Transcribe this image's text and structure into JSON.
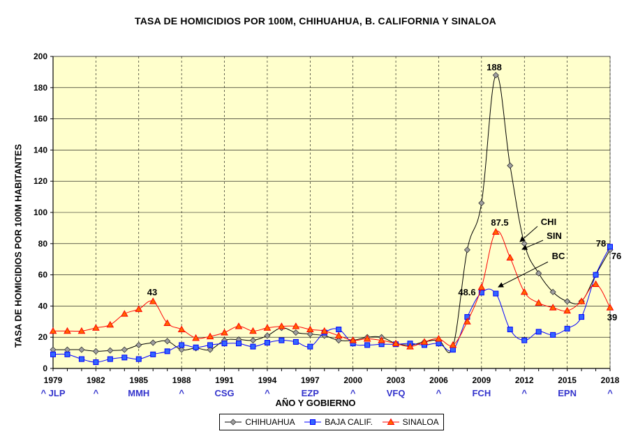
{
  "chart_data": {
    "type": "line",
    "title": "TASA DE HOMICIDIOS POR 100M, CHIHUAHUA, B. CALIFORNIA Y SINALOA",
    "ylabel": "TASA DE HOMICIDIOS POR 100M HABITANTES",
    "xlabel": "AÑO Y GOBIERNO",
    "ylim": [
      0,
      200
    ],
    "xlim": [
      1979,
      2018
    ],
    "yticks": [
      "0",
      "20",
      "40",
      "60",
      "80",
      "100",
      "120",
      "140",
      "160",
      "180",
      "200"
    ],
    "xticks": [
      "1979",
      "1982",
      "1985",
      "1988",
      "1991",
      "1994",
      "1997",
      "2000",
      "2003",
      "2006",
      "2009",
      "2012",
      "2015",
      "2018"
    ],
    "gov_labels": [
      "^ JLP",
      "^",
      "MMH",
      "^",
      "CSG",
      "^",
      "EZP",
      "^",
      "VFQ",
      "^",
      "FCH",
      "^",
      "EPN",
      "^"
    ],
    "grid": true,
    "plot_bg": "#FFFFCC",
    "x": [
      1979,
      1980,
      1981,
      1982,
      1983,
      1984,
      1985,
      1986,
      1987,
      1988,
      1989,
      1990,
      1991,
      1992,
      1993,
      1994,
      1995,
      1996,
      1997,
      1998,
      1999,
      2000,
      2001,
      2002,
      2003,
      2004,
      2005,
      2006,
      2007,
      2008,
      2009,
      2010,
      2011,
      2012,
      2013,
      2014,
      2015,
      2016,
      2017,
      2018
    ],
    "series": [
      {
        "name": "CHIHUAHUA",
        "color": "#000000",
        "marker": "diamond",
        "marker_color": "#A0A0A0",
        "values": [
          12,
          12,
          12,
          11,
          11.5,
          12,
          15,
          16.5,
          17.5,
          12,
          13,
          12,
          18,
          18.5,
          18,
          21,
          26,
          23,
          22,
          21,
          18,
          18,
          20,
          20,
          16,
          15,
          17,
          18,
          14,
          76,
          106,
          188,
          130,
          80,
          61,
          49,
          43,
          43,
          60,
          76
        ]
      },
      {
        "name": "BAJA CALIF.",
        "color": "#0000FF",
        "marker": "square",
        "marker_color": "#3366FF",
        "values": [
          9,
          9,
          6,
          4,
          6,
          7,
          6,
          9,
          11,
          15,
          13.5,
          15,
          16,
          16,
          14,
          16.5,
          18,
          17,
          14,
          23,
          25,
          16,
          15,
          15.5,
          15.5,
          16,
          15,
          16,
          12,
          33,
          48.6,
          48,
          25,
          18,
          23.5,
          21.5,
          25.5,
          33,
          60,
          78
        ]
      },
      {
        "name": "SINALOA",
        "color": "#FF0000",
        "marker": "triangle",
        "marker_color": "#FF6600",
        "values": [
          24,
          24,
          24,
          26,
          28,
          35,
          38,
          43,
          29,
          25,
          19.5,
          20.5,
          23,
          27,
          24,
          26,
          27,
          27,
          25,
          24,
          21,
          18,
          19,
          18,
          16,
          14,
          17,
          19,
          15,
          30,
          52,
          87.5,
          71,
          49,
          42,
          39,
          37,
          43,
          54,
          39
        ]
      }
    ],
    "annotations": [
      {
        "text": "188",
        "x": 2009.8,
        "y": 188
      },
      {
        "text": "87.5",
        "x": 2010,
        "y": 87.5
      },
      {
        "text": "48.6",
        "x": 2009,
        "y": 48.6
      },
      {
        "text": "43",
        "x": 1986,
        "y": 43
      },
      {
        "text": "78",
        "x": 2018,
        "y": 78
      },
      {
        "text": "76",
        "x": 2018,
        "y": 76
      },
      {
        "text": "39",
        "x": 2018,
        "y": 39
      },
      {
        "text": "CHI",
        "x": 2012,
        "y": 80
      },
      {
        "text": "SIN",
        "x": 2012,
        "y": 80
      },
      {
        "text": "BC",
        "x": 2010,
        "y": 50
      }
    ]
  }
}
